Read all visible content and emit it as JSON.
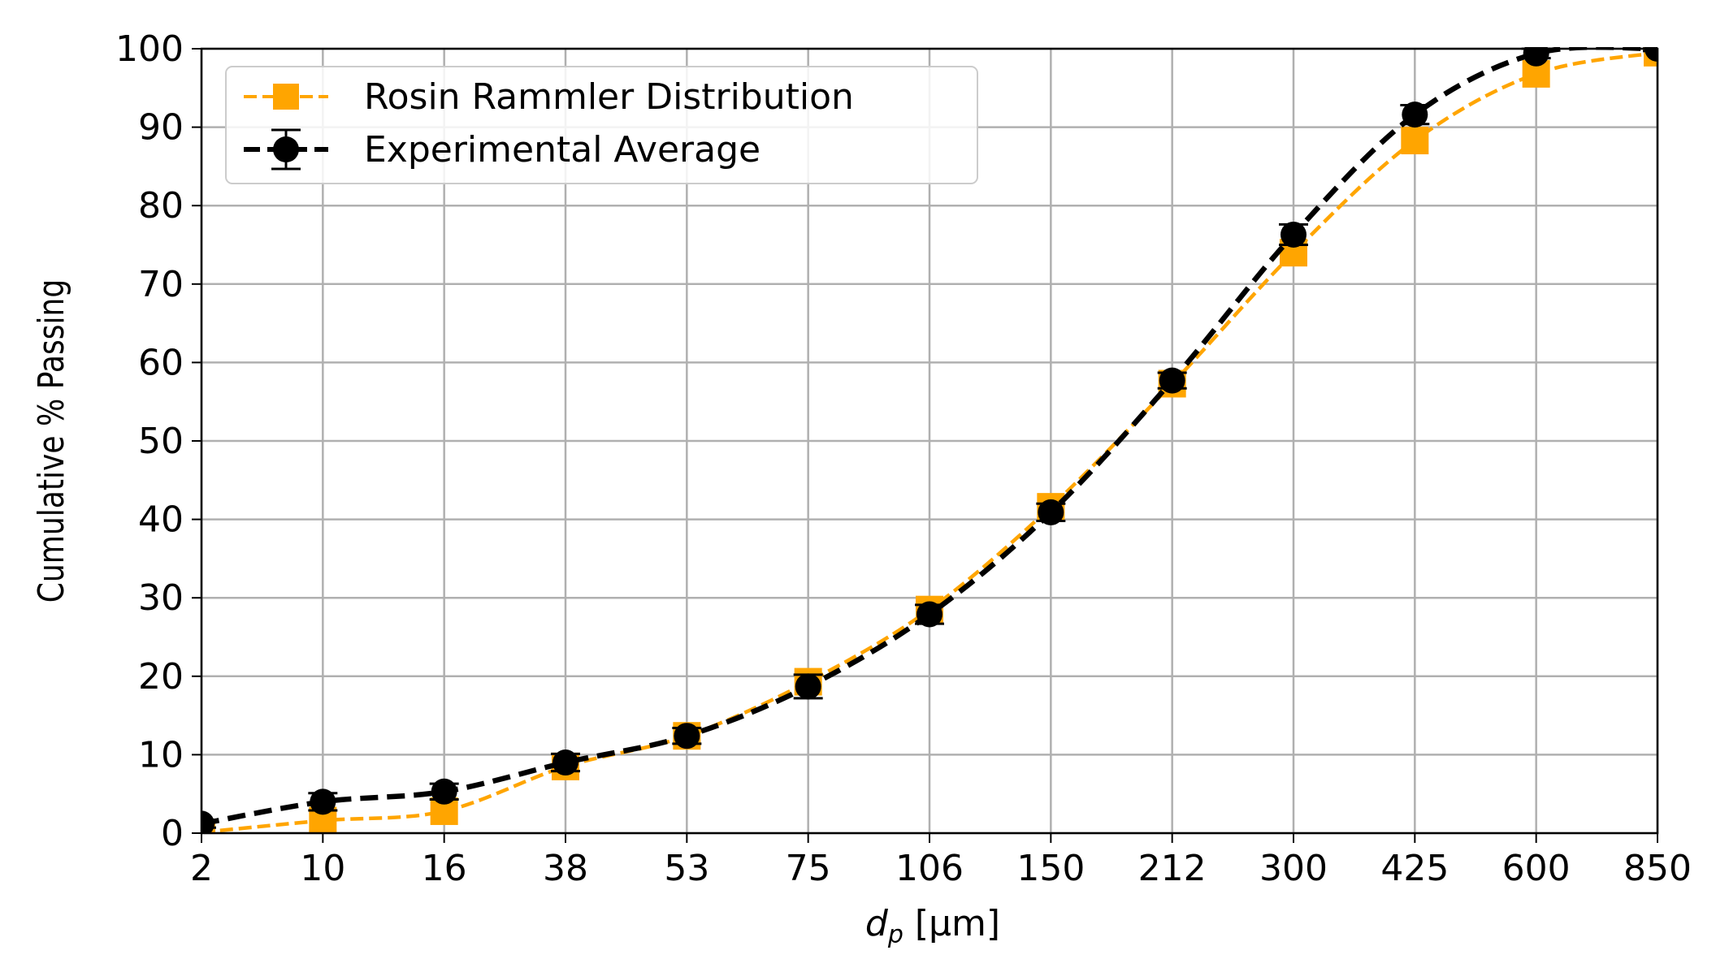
{
  "chart_data": {
    "type": "line",
    "x_categories": [
      "2",
      "10",
      "16",
      "38",
      "53",
      "75",
      "106",
      "150",
      "212",
      "300",
      "425",
      "600",
      "850"
    ],
    "ylabel": "Cumulative % Passing",
    "xlabel": {
      "base": "d",
      "sub": "p",
      "unit": " [μm]"
    },
    "ylim": [
      0,
      100
    ],
    "yticks": [
      0,
      10,
      20,
      30,
      40,
      50,
      60,
      70,
      80,
      90,
      100
    ],
    "grid": true,
    "legend_position": "upper-left",
    "series": [
      {
        "name": "Rosin Rammler Distribution",
        "color": "#FFA500",
        "line_style": "dashed",
        "marker": "square",
        "values": [
          0.1,
          1.6,
          2.8,
          8.5,
          12.4,
          19.3,
          28.5,
          41.6,
          57.3,
          74.0,
          88.3,
          96.8,
          99.5
        ]
      },
      {
        "name": "Experimental Average",
        "color": "#000000",
        "line_style": "dashed",
        "marker": "circle",
        "values": [
          1.2,
          4.0,
          5.3,
          9.0,
          12.4,
          18.7,
          27.9,
          40.9,
          57.7,
          76.3,
          91.6,
          99.4,
          100.0
        ],
        "errors": [
          0.5,
          1.1,
          1.0,
          1.1,
          1.0,
          1.5,
          1.2,
          1.1,
          1.0,
          1.3,
          1.2,
          0.6,
          0.3
        ]
      }
    ]
  }
}
